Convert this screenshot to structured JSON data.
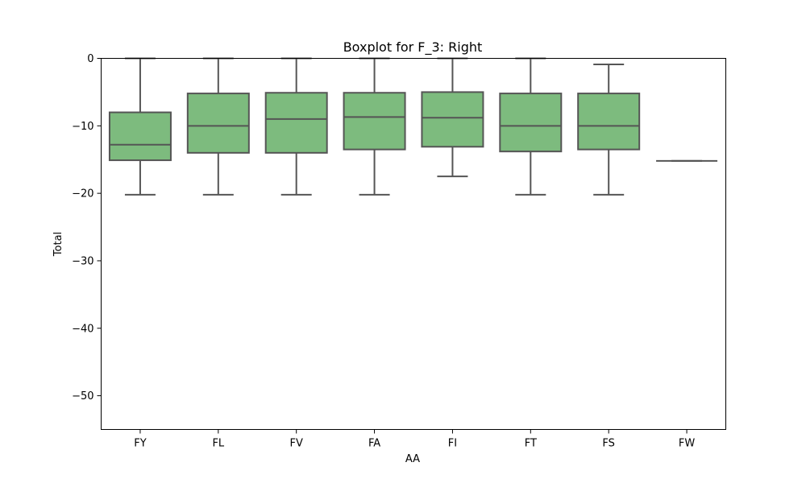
{
  "chart_data": {
    "type": "boxplot",
    "title": "Boxplot for F_3: Right",
    "xlabel": "AA",
    "ylabel": "Total",
    "ylim": [
      -55,
      0
    ],
    "yticks": [
      0,
      -10,
      -20,
      -30,
      -40,
      -50
    ],
    "ytick_labels": [
      "0",
      "−10",
      "−20",
      "−30",
      "−40",
      "−50"
    ],
    "categories": [
      "FY",
      "FL",
      "FV",
      "FA",
      "FI",
      "FT",
      "FS",
      "FW"
    ],
    "boxes": [
      {
        "category": "FY",
        "whisker_low": -20.2,
        "q1": -15.1,
        "median": -12.8,
        "q3": -8.0,
        "whisker_high": 0
      },
      {
        "category": "FL",
        "whisker_low": -20.2,
        "q1": -14.0,
        "median": -10.0,
        "q3": -5.2,
        "whisker_high": 0
      },
      {
        "category": "FV",
        "whisker_low": -20.2,
        "q1": -14.0,
        "median": -9.0,
        "q3": -5.1,
        "whisker_high": 0
      },
      {
        "category": "FA",
        "whisker_low": -20.2,
        "q1": -13.5,
        "median": -8.7,
        "q3": -5.1,
        "whisker_high": 0
      },
      {
        "category": "FI",
        "whisker_low": -17.5,
        "q1": -13.1,
        "median": -8.8,
        "q3": -5.0,
        "whisker_high": 0
      },
      {
        "category": "FT",
        "whisker_low": -20.2,
        "q1": -13.8,
        "median": -10.0,
        "q3": -5.2,
        "whisker_high": 0
      },
      {
        "category": "FS",
        "whisker_low": -20.2,
        "q1": -13.5,
        "median": -10.0,
        "q3": -5.2,
        "whisker_high": -0.9
      },
      {
        "category": "FW",
        "whisker_low": -15.2,
        "q1": -15.2,
        "median": -15.2,
        "q3": -15.2,
        "whisker_high": -15.2
      }
    ],
    "grid": false,
    "legend": "none",
    "colors": {
      "box_fill": "#7dbb7e",
      "line": "#555555",
      "axis": "#000000",
      "background": "#ffffff"
    }
  }
}
